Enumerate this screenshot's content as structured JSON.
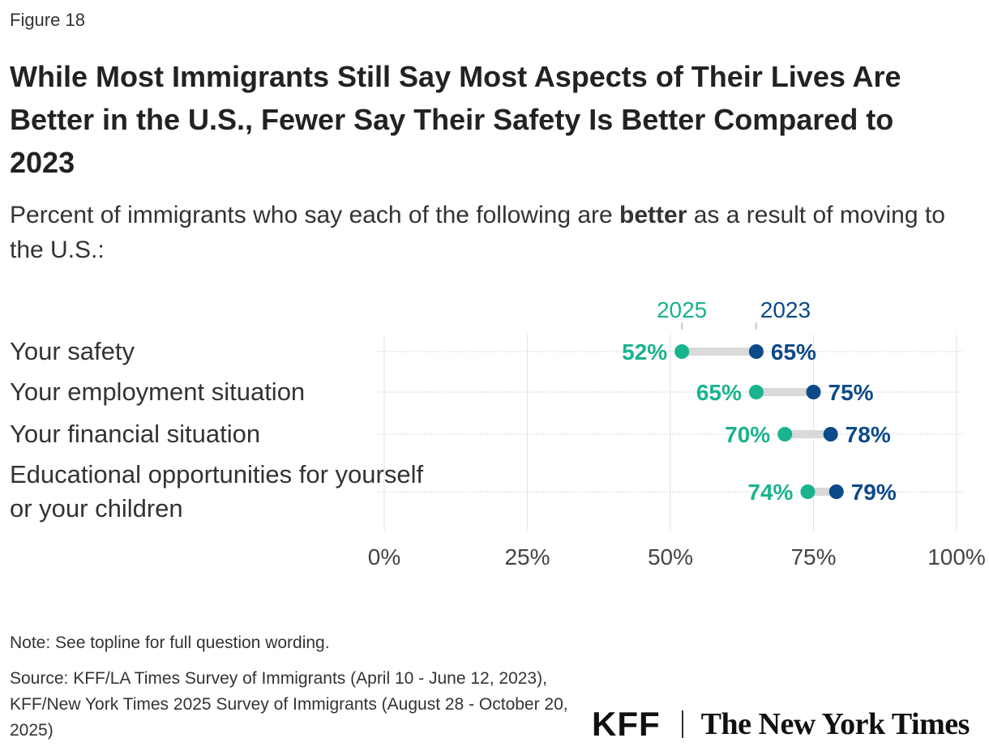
{
  "figure_label": "Figure 18",
  "title": "While Most Immigrants Still Say Most Aspects of Their Lives Are Better in the U.S., Fewer Say Their Safety Is Better Compared to 2023",
  "subtitle": {
    "before": "Percent of immigrants who say each of the following are ",
    "emphasis": "better",
    "after": " as a result of moving to the U.S.:"
  },
  "chart_data": {
    "type": "dot",
    "categories": [
      "Your safety",
      "Your employment situation",
      "Your financial situation",
      "Educational opportunities for yourself or your children"
    ],
    "series": [
      {
        "name": "2025",
        "values": [
          52,
          65,
          70,
          74
        ],
        "color": "#19b38e"
      },
      {
        "name": "2023",
        "values": [
          65,
          75,
          78,
          79
        ],
        "color": "#0c4a8a"
      }
    ],
    "xlim": [
      0,
      100
    ],
    "x_ticks": [
      "0%",
      "25%",
      "50%",
      "75%",
      "100%"
    ],
    "x_tick_values": [
      0,
      25,
      50,
      75,
      100
    ],
    "value_suffix": "%",
    "grid": true,
    "connector_color": "#d9d9d9"
  },
  "note": "Note: See topline for full question wording.",
  "source": "Source: KFF/LA Times Survey of Immigrants (April 10 - June 12, 2023), KFF/New York Times 2025 Survey of Immigrants (August 28 - October 20, 2025)",
  "logos": {
    "kff": "KFF",
    "nyt": "The New York Times"
  }
}
